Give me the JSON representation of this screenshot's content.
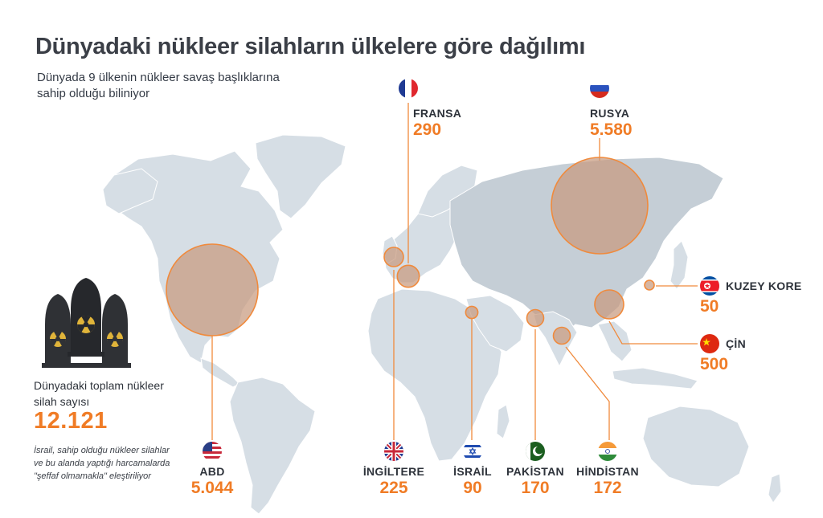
{
  "title": "Dünyadaki nükleer silahların ülkelere göre dağılımı",
  "subtitle": "Dünyada 9 ülkenin nükleer savaş başlıklarına sahip olduğu biliniyor",
  "total": {
    "label": "Dünyadaki toplam nükleer silah sayısı",
    "value": "12.121"
  },
  "note": "İsrail, sahip olduğu nükleer silahlar ve bu alanda yaptığı harcamalarda \"şeffaf olmamakla\" eleştiriliyor",
  "countries": {
    "usa": {
      "name": "ABD",
      "value": "5.044",
      "count": 5044
    },
    "russia": {
      "name": "RUSYA",
      "value": "5.580",
      "count": 5580
    },
    "france": {
      "name": "FRANSA",
      "value": "290",
      "count": 290
    },
    "uk": {
      "name": "İNGİLTERE",
      "value": "225",
      "count": 225
    },
    "israel": {
      "name": "İSRAİL",
      "value": "90",
      "count": 90
    },
    "pakistan": {
      "name": "PAKİSTAN",
      "value": "170",
      "count": 170
    },
    "india": {
      "name": "HİNDİSTAN",
      "value": "172",
      "count": 172
    },
    "china": {
      "name": "ÇİN",
      "value": "500",
      "count": 500
    },
    "north_korea": {
      "name": "KUZEY KORE",
      "value": "50",
      "count": 50
    }
  },
  "colors": {
    "accent": "#f07c26",
    "bubble_fill": "#c89a7e",
    "land": "#d6dee5"
  }
}
